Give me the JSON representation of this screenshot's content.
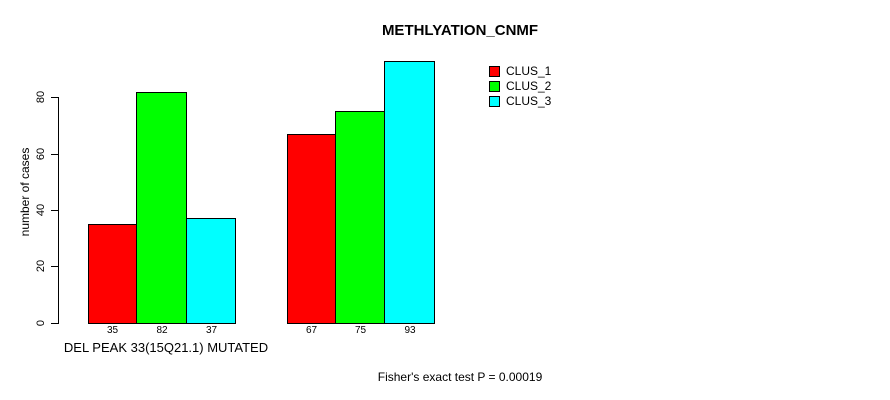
{
  "chart_data": {
    "type": "bar",
    "title": "METHLYATION_CNMF",
    "ylabel": "number of cases",
    "xlabel": "",
    "sub_caption": "Fisher's exact test P = 0.00019",
    "categories": [
      "DEL PEAK 33(15Q21.1) MUTATED",
      ""
    ],
    "series": [
      {
        "name": "CLUS_1",
        "color": "#FF0000",
        "values": [
          35,
          67
        ]
      },
      {
        "name": "CLUS_2",
        "color": "#00FF00",
        "values": [
          82,
          75
        ]
      },
      {
        "name": "CLUS_3",
        "color": "#00FFFF",
        "values": [
          37,
          93
        ]
      }
    ],
    "bar_value_labels": [
      [
        35,
        82,
        37
      ],
      [
        67,
        75,
        93
      ]
    ],
    "yticks": [
      0,
      20,
      40,
      60,
      80
    ],
    "ylim": [
      0,
      93
    ],
    "grid": false,
    "legend_position": "top-right",
    "legend_entries": [
      "CLUS_1",
      "CLUS_2",
      "CLUS_3"
    ],
    "axis_color": "#000000",
    "text_color": "#000000",
    "background_color": "#FFFFFF"
  }
}
